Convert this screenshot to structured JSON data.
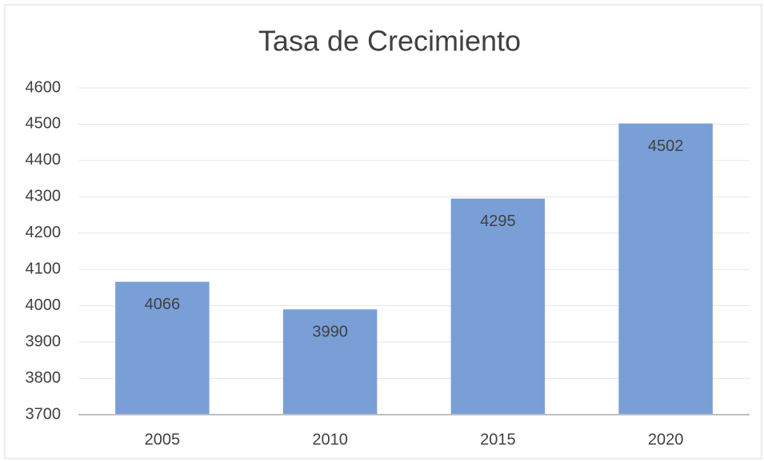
{
  "chart_data": {
    "type": "bar",
    "title": "Tasa de Crecimiento",
    "categories": [
      "2005",
      "2010",
      "2015",
      "2020"
    ],
    "values": [
      4066,
      3990,
      4295,
      4502
    ],
    "color": "#7a9fd7",
    "ylim": [
      3700,
      4600
    ],
    "yticks": [
      3700,
      3800,
      3900,
      4000,
      4100,
      4200,
      4300,
      4400,
      4500,
      4600
    ],
    "grid": true
  }
}
